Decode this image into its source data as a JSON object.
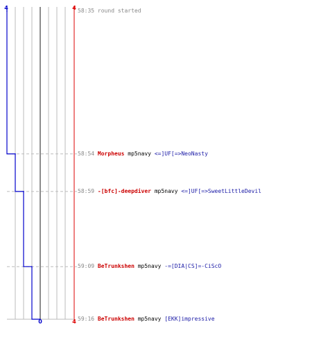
{
  "chart_data": {
    "type": "line",
    "title": "",
    "xlabel": "",
    "ylabel": "",
    "x_min_label": "0",
    "x_max_label": "4",
    "x_range": [
      0,
      4
    ],
    "time_range": [
      "58:35",
      "59:16"
    ],
    "grid": true,
    "colors": {
      "left_team": "#0000cc",
      "right_team": "#dd0000",
      "grid": "#bbbbbb",
      "guide": "#bbbbbb",
      "center": "#666666"
    },
    "series": [
      {
        "x": [
          0,
          1,
          2,
          3,
          4
        ],
        "y": [
          "58:35",
          "58:54",
          "58:59",
          "59:09",
          "59:16"
        ]
      }
    ],
    "events": [
      {
        "time": "58:35",
        "note": "round started"
      },
      {
        "time": "58:54",
        "killer": "Morpheus",
        "weapon": "mp5navy",
        "victim": "<=]UF[=>NeoNasty"
      },
      {
        "time": "58:59",
        "killer": "-[bfc]-deepdiver",
        "weapon": "mp5navy",
        "victim": "<=]UF[=>SweetLittleDevil"
      },
      {
        "time": "59:09",
        "killer": "BeTrunkshen",
        "weapon": "mp5navy",
        "victim": "-=[DIA|CS]=-CiScO"
      },
      {
        "time": "59:16",
        "killer": "BeTrunkshen",
        "weapon": "mp5navy",
        "victim": "[EKK]impressive"
      }
    ]
  }
}
